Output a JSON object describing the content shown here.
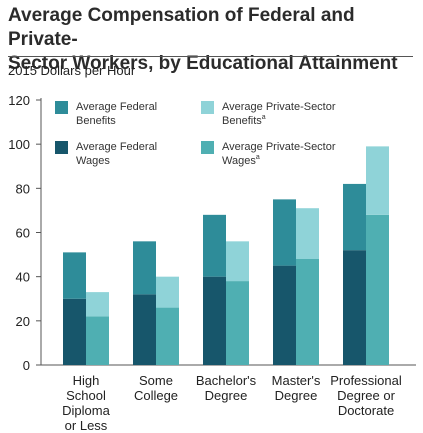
{
  "title_line1": "Average Compensation of Federal and Private-",
  "title_line2": "Sector Workers, by Educational Attainment",
  "chart_data": {
    "type": "bar",
    "subtitle": "2015 Dollars per Hour",
    "categories": [
      [
        "High",
        "School",
        "Diploma",
        "or Less"
      ],
      [
        "Some",
        "College"
      ],
      [
        "Bachelor's",
        "Degree"
      ],
      [
        "Master's",
        "Degree"
      ],
      [
        "Professional",
        "Degree or",
        "Doctorate"
      ]
    ],
    "stacked_groups": [
      {
        "group": "Federal",
        "series": [
          {
            "name": "Average Federal Wages",
            "key": "fed_wages",
            "values": [
              30,
              32,
              40,
              45,
              52
            ]
          },
          {
            "name": "Average Federal Benefits",
            "key": "fed_benefits",
            "values": [
              21,
              24,
              28,
              30,
              30
            ]
          }
        ]
      },
      {
        "group": "Private-Sector",
        "series": [
          {
            "name": "Average Private-Sector Wages",
            "key": "priv_wages",
            "values": [
              22,
              26,
              38,
              48,
              68
            ]
          },
          {
            "name": "Average Private-Sector Benefits",
            "key": "priv_benefits",
            "values": [
              11,
              14,
              18,
              23,
              31
            ]
          }
        ]
      }
    ],
    "ylim": [
      0,
      120
    ],
    "yticks": [
      0,
      20,
      40,
      60,
      80,
      100,
      120
    ],
    "grid": false,
    "legend_placement": "top-left",
    "colors": {
      "fed_wages": "#17566b",
      "fed_benefits": "#2e8c99",
      "priv_wages": "#4fafb2",
      "priv_benefits": "#8fd3d8"
    },
    "legend": [
      {
        "key": "fed_benefits",
        "lines": [
          "Average Federal",
          "Benefits"
        ],
        "sup": ""
      },
      {
        "key": "priv_benefits",
        "lines": [
          "Average Private-Sector",
          "Benefits"
        ],
        "sup": "a"
      },
      {
        "key": "fed_wages",
        "lines": [
          "Average Federal",
          "Wages"
        ],
        "sup": ""
      },
      {
        "key": "priv_wages",
        "lines": [
          "Average Private-Sector",
          "Wages"
        ],
        "sup": "a"
      }
    ]
  }
}
